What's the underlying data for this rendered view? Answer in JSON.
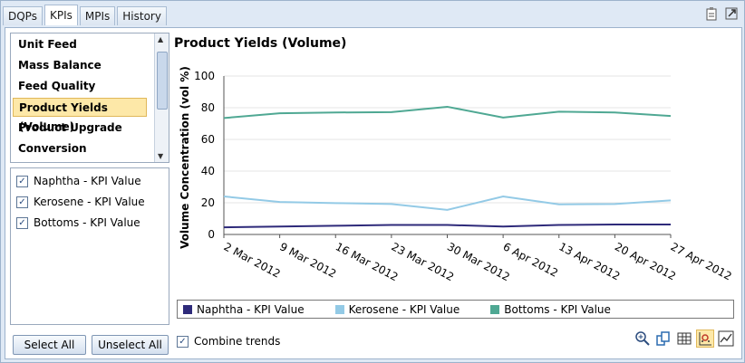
{
  "tabs": [
    {
      "label": "DQPs",
      "active": false
    },
    {
      "label": "KPIs",
      "active": true
    },
    {
      "label": "MPIs",
      "active": false
    },
    {
      "label": "History",
      "active": false
    }
  ],
  "kpi_list": {
    "items": [
      "Unit Feed",
      "Mass Balance",
      "Feed Quality",
      "Product Yields (Volume)",
      "Product Upgrade",
      "Conversion"
    ],
    "selected_index": 3
  },
  "series_list": {
    "items": [
      {
        "label": "Naphtha - KPI Value",
        "checked": true
      },
      {
        "label": "Kerosene - KPI Value",
        "checked": true
      },
      {
        "label": "Bottoms - KPI Value",
        "checked": true
      }
    ]
  },
  "buttons": {
    "select_all": "Select All",
    "unselect_all": "Unselect All"
  },
  "combine_trends": {
    "label": "Combine trends",
    "checked": true
  },
  "icons": {
    "top": [
      "clipboard-icon",
      "popout-icon"
    ],
    "tools": [
      "zoom-icon",
      "copy-icon",
      "table-icon",
      "scatter-icon",
      "trend-icon"
    ]
  },
  "chart_data": {
    "type": "line",
    "title": "Product Yields (Volume)",
    "ylabel": "Volume Concentration (vol %)",
    "xlabel": "",
    "ylim": [
      0,
      100
    ],
    "yticks": [
      0,
      20,
      40,
      60,
      80,
      100
    ],
    "grid": true,
    "legend_position": "bottom",
    "x": [
      "2 Mar 2012",
      "9 Mar 2012",
      "16 Mar 2012",
      "23 Mar 2012",
      "30 Mar 2012",
      "6 Apr 2012",
      "13 Apr 2012",
      "20 Apr 2012",
      "27 Apr 2012"
    ],
    "series": [
      {
        "name": "Naphtha - KPI Value",
        "color": "#2e2a7a",
        "values": [
          4.5,
          5,
          5.5,
          6,
          6,
          5,
          6,
          6.3,
          6.3
        ]
      },
      {
        "name": "Kerosene - KPI Value",
        "color": "#93cae6",
        "values": [
          24,
          20.5,
          19.8,
          19.2,
          15.5,
          24,
          19,
          19.2,
          21.5
        ]
      },
      {
        "name": "Bottoms - KPI Value",
        "color": "#4fa893",
        "values": [
          73.5,
          76.5,
          77,
          77.2,
          80.6,
          73.8,
          77.5,
          77,
          74.8
        ]
      }
    ]
  }
}
